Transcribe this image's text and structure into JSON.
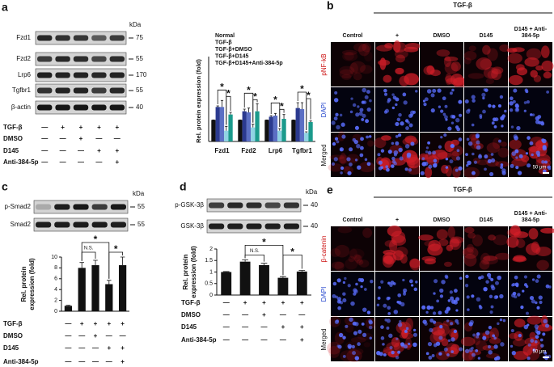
{
  "panels": [
    "a",
    "b",
    "c",
    "d",
    "e"
  ],
  "blots_a": {
    "labels": [
      "Fzd1",
      "Fzd2",
      "Lrp6",
      "Tgfbr1",
      "β-actin"
    ],
    "unit": "kDa",
    "markers": [
      "75",
      "55",
      "170",
      "55",
      "40"
    ],
    "conditions": [
      {
        "name": "TGF-β",
        "signs": [
          "—",
          "+",
          "+",
          "+",
          "+"
        ]
      },
      {
        "name": "DMSO",
        "signs": [
          "—",
          "—",
          "+",
          "—",
          "—"
        ]
      },
      {
        "name": "D145",
        "signs": [
          "—",
          "—",
          "—",
          "+",
          "+"
        ]
      },
      {
        "name": "Anti-384-5p",
        "signs": [
          "—",
          "—",
          "—",
          "—",
          "+"
        ]
      }
    ]
  },
  "blots_c": {
    "labels": [
      "p-Smad2",
      "Smad2"
    ],
    "unit": "kDa",
    "markers": [
      "55",
      "55"
    ]
  },
  "blots_d": {
    "labels": [
      "p-GSK-3β",
      "GSK-3β"
    ],
    "unit": "kDa",
    "markers": [
      "40",
      "40"
    ]
  },
  "micrographs_b": {
    "treatment": "TGF-β",
    "columns": [
      "Control",
      "+",
      "DMSO",
      "D145",
      "D145 + Anti-384-5p"
    ],
    "rows": [
      "pNF-kB",
      "DAPI",
      "Merged"
    ],
    "scale_bar": "50 μm"
  },
  "micrographs_e": {
    "treatment": "TGF-β",
    "columns": [
      "Control",
      "+",
      "DMSO",
      "D145",
      "D145 + Anti-384-5p"
    ],
    "rows": [
      "β-catenin",
      "DAPI",
      "Merged"
    ],
    "scale_bar": "50 μm"
  },
  "chart_data": [
    {
      "type": "bar",
      "ylabel": "Rel. protein expression (fold)",
      "categories": [
        "Fzd1",
        "Fzd2",
        "Lrp6",
        "Tgfbr1"
      ],
      "series": [
        {
          "name": "Normal",
          "color": "#111111",
          "values": [
            1,
            1,
            1,
            1
          ],
          "errors": [
            0,
            0,
            0,
            0
          ]
        },
        {
          "name": "TGF-β",
          "color": "#2b3a8f",
          "values": [
            1.6,
            1.4,
            1.15,
            1.55
          ],
          "errors": [
            0.05,
            0.1,
            0.05,
            0.25
          ]
        },
        {
          "name": "TGF-β+DMSO",
          "color": "#5b6fc4",
          "values": [
            1.6,
            1.35,
            1.2,
            1.5
          ],
          "errors": [
            0.3,
            0.2,
            0.1,
            0.3
          ]
        },
        {
          "name": "TGF-β+D145",
          "color": "#8fd3e3",
          "values": [
            0.5,
            0.65,
            0.5,
            0.4
          ],
          "errors": [
            0.2,
            0.15,
            0.1,
            0.05
          ]
        },
        {
          "name": "TGF-β+D145+Anti-384-5p",
          "color": "#1b9a8c",
          "values": [
            1.25,
            1.4,
            1.05,
            0.9
          ],
          "errors": [
            0.1,
            0.35,
            0.2,
            0.05
          ]
        }
      ],
      "ylim": [
        0,
        3
      ],
      "annotations": [
        "*",
        "*",
        "*",
        "*",
        "*",
        "*",
        "*",
        "*"
      ]
    },
    {
      "type": "bar",
      "ylabel": [
        "Rel. protein",
        "expression (fold)"
      ],
      "categories": [
        null,
        null,
        null,
        null,
        null
      ],
      "values": [
        1,
        8,
        8.5,
        5,
        8.5
      ],
      "errors": [
        0.1,
        1,
        0.9,
        0.7,
        1.5
      ],
      "color": "#111111",
      "ylim": [
        0,
        10
      ],
      "yticks": [
        0,
        2,
        4,
        6,
        8,
        10
      ],
      "annotations": [
        "N.S.",
        "*",
        "*"
      ],
      "conditions": [
        {
          "name": "TGF-β",
          "signs": [
            "—",
            "+",
            "+",
            "+",
            "+"
          ]
        },
        {
          "name": "DMSO",
          "signs": [
            "—",
            "—",
            "+",
            "—",
            "—"
          ]
        },
        {
          "name": "D145",
          "signs": [
            "—",
            "—",
            "—",
            "+",
            "+"
          ]
        },
        {
          "name": "Anti-384-5p",
          "signs": [
            "—",
            "—",
            "—",
            "—",
            "+"
          ]
        }
      ]
    },
    {
      "type": "bar",
      "ylabel": [
        "Rel. protein",
        "expression (fold)"
      ],
      "categories": [
        null,
        null,
        null,
        null,
        null
      ],
      "values": [
        1,
        1.45,
        1.3,
        0.75,
        1.02
      ],
      "errors": [
        0.02,
        0.08,
        0.08,
        0.05,
        0.05
      ],
      "color": "#111111",
      "ylim": [
        0,
        2
      ],
      "yticks": [
        0,
        0.5,
        1,
        1.5,
        2
      ],
      "annotations": [
        "N.S.",
        "*",
        "*"
      ],
      "conditions": [
        {
          "name": "TGF-β",
          "signs": [
            "—",
            "+",
            "+",
            "+",
            "+"
          ]
        },
        {
          "name": "DMSO",
          "signs": [
            "—",
            "—",
            "+",
            "—",
            "—"
          ]
        },
        {
          "name": "D145",
          "signs": [
            "—",
            "—",
            "—",
            "+",
            "+"
          ]
        },
        {
          "name": "Anti-384-5p",
          "signs": [
            "—",
            "—",
            "—",
            "—",
            "+"
          ]
        }
      ]
    }
  ]
}
